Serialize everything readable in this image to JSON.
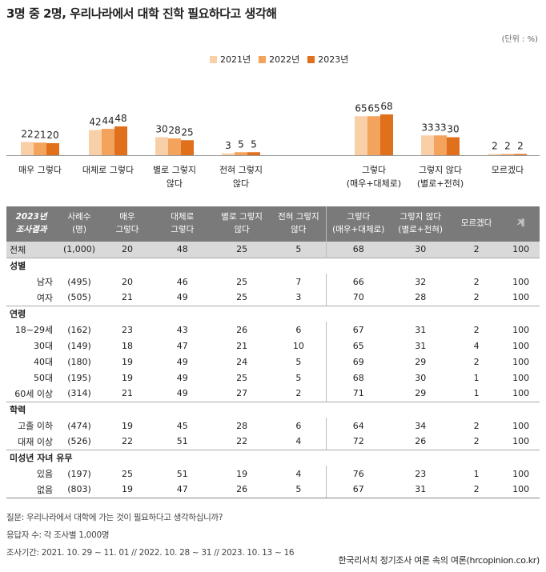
{
  "title": "3명 중 2명, 우리나라에서 대학 진학 필요하다고 생각해",
  "unit": "(단위 : %)",
  "colors": {
    "y2021": "#f9cfa7",
    "y2022": "#f4a35c",
    "y2023": "#e0701c",
    "header": "#7a7a7a",
    "total": "#d9d9d9"
  },
  "chart_data": {
    "type": "bar",
    "series": [
      {
        "name": "2021년",
        "values": [
          22,
          42,
          30,
          3,
          65,
          33,
          2
        ]
      },
      {
        "name": "2022년",
        "values": [
          21,
          44,
          28,
          5,
          65,
          33,
          2
        ]
      },
      {
        "name": "2023년",
        "values": [
          20,
          48,
          25,
          5,
          68,
          30,
          2
        ]
      }
    ],
    "categories": [
      [
        "매우 그렇다"
      ],
      [
        "대체로 그렇다"
      ],
      [
        "별로 그렇지",
        "않다"
      ],
      [
        "전혀 그렇지",
        "않다"
      ],
      [
        "그렇다",
        "(매우+대체로)"
      ],
      [
        "그렇지 않다",
        "(별로+전혀)"
      ],
      [
        "모르겠다"
      ]
    ],
    "ylim": [
      0,
      100
    ]
  },
  "table": {
    "headers": [
      [
        "2023년",
        "조사결과"
      ],
      [
        "사례수",
        "(명)"
      ],
      [
        "매우",
        "그렇다"
      ],
      [
        "대체로",
        "그렇다"
      ],
      [
        "별로 그렇지",
        "않다"
      ],
      [
        "전혀 그렇지",
        "않다"
      ],
      [
        "그렇다",
        "(매우+대체로)"
      ],
      [
        "그렇지 않다",
        "(별로+전혀)"
      ],
      [
        "모르겠다"
      ],
      [
        "계"
      ]
    ],
    "total": {
      "label": "전체",
      "values": [
        "(1,000)",
        "20",
        "48",
        "25",
        "5",
        "68",
        "30",
        "2",
        "100"
      ]
    },
    "groups": [
      {
        "name": "성별",
        "rows": [
          {
            "label": "남자",
            "values": [
              "(495)",
              "20",
              "46",
              "25",
              "7",
              "66",
              "32",
              "2",
              "100"
            ]
          },
          {
            "label": "여자",
            "values": [
              "(505)",
              "21",
              "49",
              "25",
              "3",
              "70",
              "28",
              "2",
              "100"
            ]
          }
        ]
      },
      {
        "name": "연령",
        "rows": [
          {
            "label": "18~29세",
            "values": [
              "(162)",
              "23",
              "43",
              "26",
              "6",
              "67",
              "31",
              "2",
              "100"
            ]
          },
          {
            "label": "30대",
            "values": [
              "(149)",
              "18",
              "47",
              "21",
              "10",
              "65",
              "31",
              "4",
              "100"
            ]
          },
          {
            "label": "40대",
            "values": [
              "(180)",
              "19",
              "49",
              "24",
              "5",
              "69",
              "29",
              "2",
              "100"
            ]
          },
          {
            "label": "50대",
            "values": [
              "(195)",
              "19",
              "49",
              "25",
              "5",
              "68",
              "30",
              "1",
              "100"
            ]
          },
          {
            "label": "60세 이상",
            "values": [
              "(314)",
              "21",
              "49",
              "27",
              "2",
              "71",
              "29",
              "1",
              "100"
            ]
          }
        ]
      },
      {
        "name": "학력",
        "rows": [
          {
            "label": "고졸 이하",
            "values": [
              "(474)",
              "19",
              "45",
              "28",
              "6",
              "64",
              "34",
              "2",
              "100"
            ]
          },
          {
            "label": "대재 이상",
            "values": [
              "(526)",
              "22",
              "51",
              "22",
              "4",
              "72",
              "26",
              "2",
              "100"
            ]
          }
        ]
      },
      {
        "name": "미성년 자녀 유무",
        "rows": [
          {
            "label": "있음",
            "values": [
              "(197)",
              "25",
              "51",
              "19",
              "4",
              "76",
              "23",
              "1",
              "100"
            ]
          },
          {
            "label": "없음",
            "values": [
              "(803)",
              "19",
              "47",
              "26",
              "5",
              "67",
              "31",
              "2",
              "100"
            ]
          }
        ]
      }
    ]
  },
  "notes": [
    "질문: 우리나라에서 대학에 가는 것이 필요하다고 생각하십니까?",
    "응답자 수: 각 조사별 1,000명",
    "조사기간: 2021. 10. 29 ~ 11. 01 // 2022. 10. 28 ~ 31 // 2023. 10. 13 ~ 16"
  ],
  "source": "한국리서치 정기조사 여론 속의 여론(hrcopinion.co.kr)"
}
